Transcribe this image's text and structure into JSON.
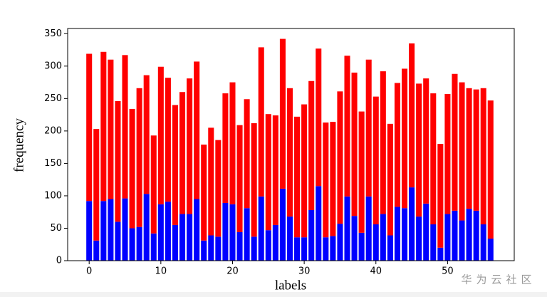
{
  "chart_data": {
    "type": "stacked_bar",
    "x": [
      0,
      1,
      2,
      3,
      4,
      5,
      6,
      7,
      8,
      9,
      10,
      11,
      12,
      13,
      14,
      15,
      16,
      17,
      18,
      19,
      20,
      21,
      22,
      23,
      24,
      25,
      26,
      27,
      28,
      29,
      30,
      31,
      32,
      33,
      34,
      35,
      36,
      37,
      38,
      39,
      40,
      41,
      42,
      43,
      44,
      45,
      46,
      47,
      48,
      49,
      50,
      51,
      52,
      53,
      54,
      55,
      56
    ],
    "series": [
      {
        "color": "#0000ff",
        "values": [
          92,
          31,
          92,
          95,
          60,
          96,
          50,
          52,
          103,
          42,
          87,
          91,
          55,
          72,
          72,
          95,
          31,
          39,
          37,
          89,
          87,
          44,
          81,
          37,
          99,
          47,
          55,
          111,
          68,
          36,
          36,
          78,
          115,
          36,
          38,
          57,
          99,
          69,
          43,
          99,
          56,
          72,
          39,
          83,
          81,
          113,
          68,
          88,
          56,
          20,
          72,
          77,
          62,
          80,
          77,
          56,
          34
        ]
      },
      {
        "color": "#ff0000",
        "values": [
          227,
          172,
          230,
          215,
          186,
          221,
          184,
          214,
          183,
          151,
          212,
          191,
          185,
          188,
          209,
          212,
          148,
          166,
          149,
          169,
          188,
          165,
          168,
          175,
          230,
          179,
          169,
          231,
          198,
          186,
          205,
          199,
          212,
          177,
          176,
          204,
          217,
          221,
          187,
          211,
          197,
          220,
          172,
          191,
          215,
          222,
          205,
          193,
          202,
          160,
          185,
          211,
          213,
          186,
          187,
          210,
          213
        ]
      }
    ],
    "xlim": [
      -3,
      59.3
    ],
    "xticks": [
      0,
      10,
      20,
      30,
      40,
      50
    ],
    "ylim": [
      0,
      358
    ],
    "yticks": [
      0,
      50,
      100,
      150,
      200,
      250,
      300,
      350
    ],
    "xlabel": "labels",
    "ylabel": "frequency",
    "watermark": "华为云社区"
  }
}
